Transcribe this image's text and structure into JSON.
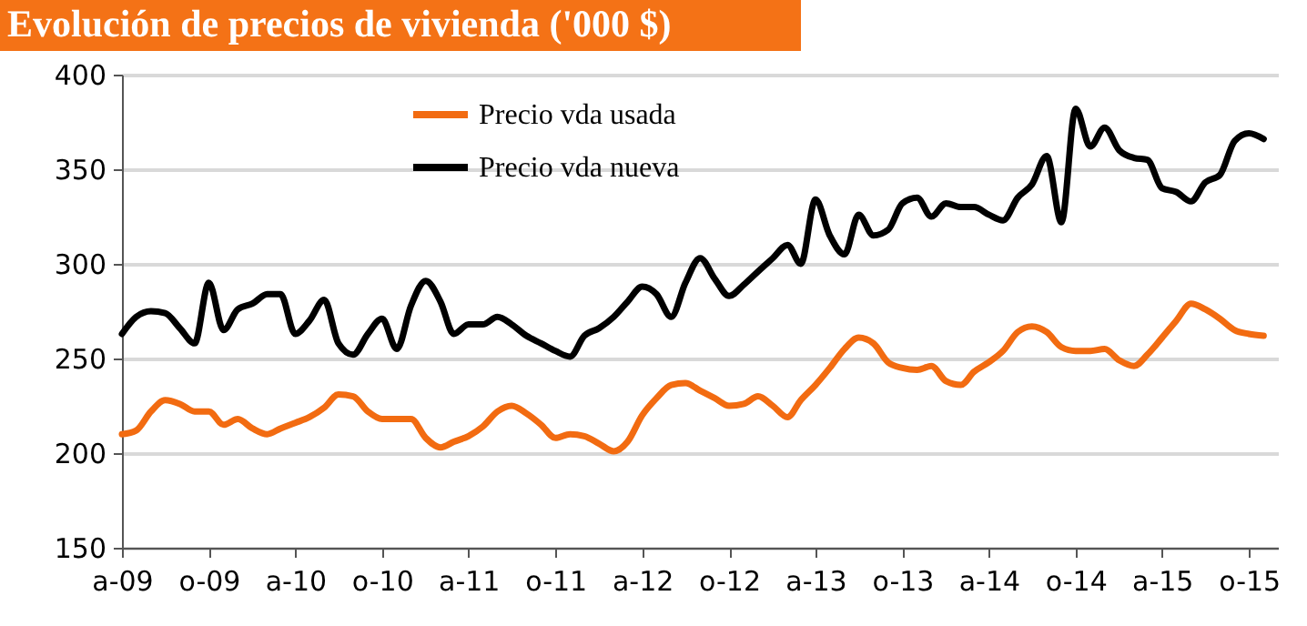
{
  "chart_data": {
    "type": "line",
    "title": "Evolución de precios de vivienda ('000 $)",
    "x": [
      "2009-04",
      "2009-05",
      "2009-06",
      "2009-07",
      "2009-08",
      "2009-09",
      "2009-10",
      "2009-11",
      "2009-12",
      "2010-01",
      "2010-02",
      "2010-03",
      "2010-04",
      "2010-05",
      "2010-06",
      "2010-07",
      "2010-08",
      "2010-09",
      "2010-10",
      "2010-11",
      "2010-12",
      "2011-01",
      "2011-02",
      "2011-03",
      "2011-04",
      "2011-05",
      "2011-06",
      "2011-07",
      "2011-08",
      "2011-09",
      "2011-10",
      "2011-11",
      "2011-12",
      "2012-01",
      "2012-02",
      "2012-03",
      "2012-04",
      "2012-05",
      "2012-06",
      "2012-07",
      "2012-08",
      "2012-09",
      "2012-10",
      "2012-11",
      "2012-12",
      "2013-01",
      "2013-02",
      "2013-03",
      "2013-04",
      "2013-05",
      "2013-06",
      "2013-07",
      "2013-08",
      "2013-09",
      "2013-10",
      "2013-11",
      "2013-12",
      "2014-01",
      "2014-02",
      "2014-03",
      "2014-04",
      "2014-05",
      "2014-06",
      "2014-07",
      "2014-08",
      "2014-09",
      "2014-10",
      "2014-11",
      "2014-12",
      "2015-01",
      "2015-02",
      "2015-03",
      "2015-04",
      "2015-05",
      "2015-06",
      "2015-07",
      "2015-08",
      "2015-09",
      "2015-10",
      "2015-11"
    ],
    "series": [
      {
        "name": "Precio vda usada",
        "color": "#f26b11",
        "values": [
          210,
          212,
          222,
          228,
          226,
          222,
          222,
          215,
          218,
          213,
          210,
          213,
          216,
          219,
          224,
          231,
          230,
          222,
          218,
          218,
          218,
          208,
          203,
          206,
          209,
          214,
          222,
          225,
          221,
          215,
          208,
          210,
          209,
          205,
          201,
          206,
          220,
          229,
          236,
          237,
          233,
          229,
          225,
          226,
          230,
          225,
          219,
          228,
          236,
          245,
          255,
          261,
          258,
          248,
          245,
          244,
          246,
          238,
          236,
          243,
          248,
          254,
          264,
          267,
          264,
          256,
          254,
          254,
          255,
          249,
          246,
          252,
          261,
          270,
          279,
          276,
          271,
          265,
          263,
          262
        ]
      },
      {
        "name": "Precio vda nueva",
        "color": "#000000",
        "values": [
          263,
          272,
          275,
          274,
          266,
          258,
          290,
          265,
          276,
          279,
          284,
          284,
          263,
          270,
          281,
          258,
          252,
          263,
          271,
          255,
          278,
          291,
          280,
          263,
          268,
          268,
          272,
          268,
          262,
          258,
          254,
          251,
          262,
          266,
          272,
          280,
          288,
          284,
          272,
          290,
          303,
          292,
          283,
          289,
          296,
          303,
          310,
          300,
          334,
          315,
          305,
          326,
          315,
          318,
          332,
          335,
          325,
          332,
          330,
          330,
          326,
          323,
          335,
          342,
          357,
          322,
          382,
          362,
          372,
          360,
          356,
          355,
          340,
          338,
          333,
          343,
          347,
          365,
          369,
          366
        ]
      }
    ],
    "xlim": [
      "2009-04",
      "2015-12"
    ],
    "xticks": [
      {
        "value": "2009-04",
        "label": "a-09"
      },
      {
        "value": "2009-10",
        "label": "o-09"
      },
      {
        "value": "2010-04",
        "label": "a-10"
      },
      {
        "value": "2010-10",
        "label": "o-10"
      },
      {
        "value": "2011-04",
        "label": "a-11"
      },
      {
        "value": "2011-10",
        "label": "o-11"
      },
      {
        "value": "2012-04",
        "label": "a-12"
      },
      {
        "value": "2012-10",
        "label": "o-12"
      },
      {
        "value": "2013-04",
        "label": "a-13"
      },
      {
        "value": "2013-10",
        "label": "o-13"
      },
      {
        "value": "2014-04",
        "label": "a-14"
      },
      {
        "value": "2014-10",
        "label": "o-14"
      },
      {
        "value": "2015-04",
        "label": "a-15"
      },
      {
        "value": "2015-10",
        "label": "o-15"
      }
    ],
    "ylim": [
      150,
      400
    ],
    "yticks": [
      150,
      200,
      250,
      300,
      350,
      400
    ],
    "grid": "y",
    "legend": "top"
  }
}
